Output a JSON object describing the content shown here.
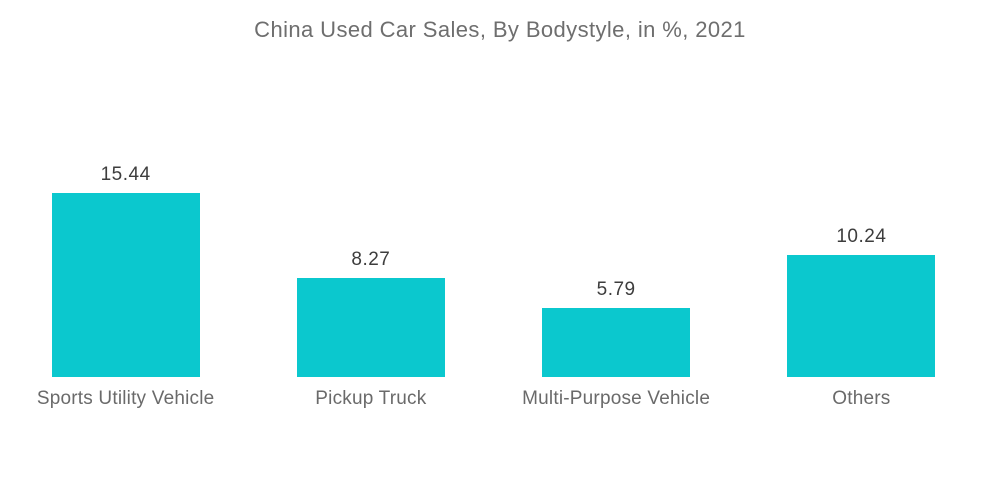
{
  "chart_data": {
    "type": "bar",
    "title": "China Used Car Sales, By Bodystyle, in %, 2021",
    "categories": [
      "Sports Utility Vehicle",
      "Pickup Truck",
      "Multi-Purpose Vehicle",
      "Others"
    ],
    "values": [
      15.44,
      8.27,
      5.79,
      10.24
    ],
    "value_labels": [
      "15.44",
      "8.27",
      "5.79",
      "10.24"
    ],
    "unit": "%",
    "xlabel": "",
    "ylabel": "",
    "ylim": [
      0,
      15.44
    ],
    "grid": false,
    "legend": false,
    "axes_visible": false,
    "value_label_position": "above-bar",
    "colors": {
      "bar": "#0BC8CE",
      "title_text": "#6E6E6E",
      "category_text": "#6A6A6A",
      "value_text": "#3D3D3D",
      "background": "#FFFFFF"
    }
  }
}
